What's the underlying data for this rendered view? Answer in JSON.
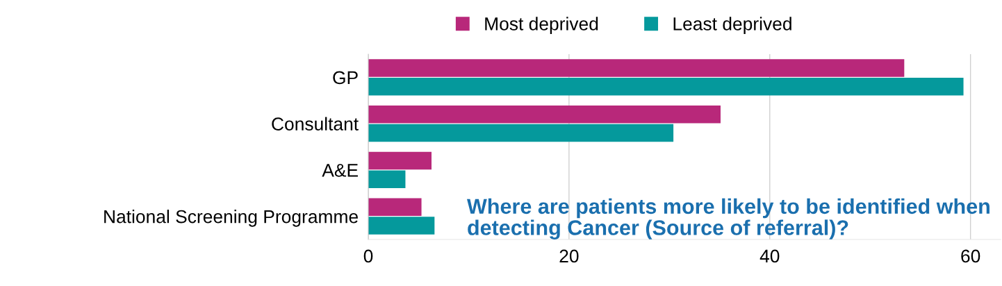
{
  "chart_data": {
    "type": "bar",
    "orientation": "horizontal",
    "title": "Where are patients more likely to be identified when detecting Cancer (Source of referral)?",
    "categories": [
      "GP",
      "Consultant",
      "A&E",
      "National Screening Programme"
    ],
    "series": [
      {
        "name": "Most deprived",
        "color": "#b8287a",
        "values": [
          53.4,
          35.1,
          6.3,
          5.3
        ]
      },
      {
        "name": "Least deprived",
        "color": "#05999c",
        "values": [
          59.3,
          30.4,
          3.7,
          6.6
        ]
      }
    ],
    "xlim": [
      0,
      63
    ],
    "xticks": [
      0,
      20,
      40,
      60
    ],
    "grid": "x",
    "legend": "top"
  }
}
